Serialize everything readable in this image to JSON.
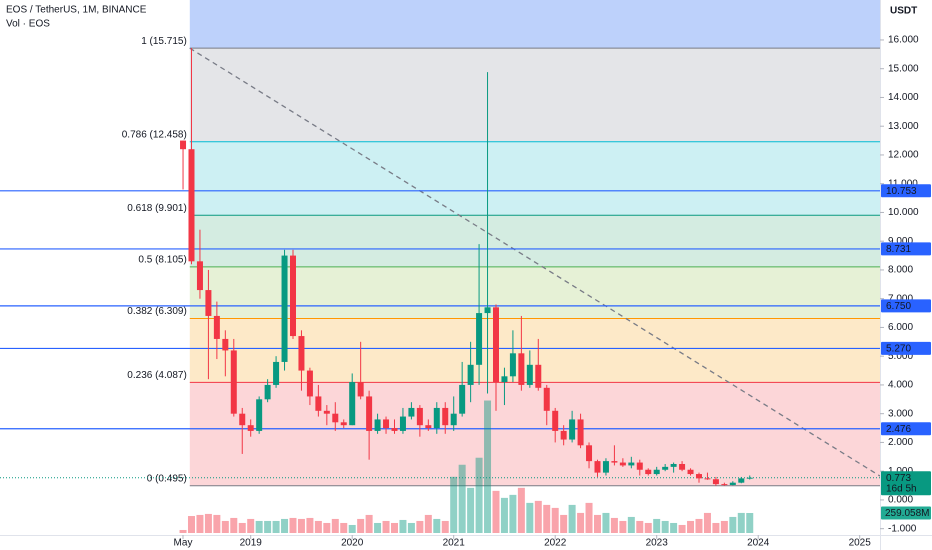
{
  "header": {
    "symbol": "EOS / TetherUS, 1M, BINANCE",
    "vol_label": "Vol · EOS"
  },
  "chart_data": {
    "type": "candlestick",
    "currency": "USDT",
    "dates": [
      "2018-05",
      "2018-06",
      "2018-07",
      "2018-08",
      "2018-09",
      "2018-10",
      "2018-11",
      "2018-12",
      "2019-01",
      "2019-02",
      "2019-03",
      "2019-04",
      "2019-05",
      "2019-06",
      "2019-07",
      "2019-08",
      "2019-09",
      "2019-10",
      "2019-11",
      "2019-12",
      "2020-01",
      "2020-02",
      "2020-03",
      "2020-04",
      "2020-05",
      "2020-06",
      "2020-07",
      "2020-08",
      "2020-09",
      "2020-10",
      "2020-11",
      "2020-12",
      "2021-01",
      "2021-02",
      "2021-03",
      "2021-04",
      "2021-05",
      "2021-06",
      "2021-07",
      "2021-08",
      "2021-09",
      "2021-10",
      "2021-11",
      "2021-12",
      "2022-01",
      "2022-02",
      "2022-03",
      "2022-04",
      "2022-05",
      "2022-06",
      "2022-07",
      "2022-08",
      "2022-09",
      "2022-10",
      "2022-11",
      "2022-12",
      "2023-01",
      "2023-02",
      "2023-03",
      "2023-04",
      "2023-05",
      "2023-06",
      "2023-07",
      "2023-08",
      "2023-09",
      "2023-10",
      "2023-11",
      "2023-12"
    ],
    "open": [
      12.5,
      12.2,
      8.3,
      7.3,
      6.4,
      5.6,
      5.2,
      3.0,
      2.6,
      2.4,
      3.5,
      4.0,
      4.8,
      8.5,
      5.7,
      4.5,
      3.6,
      3.1,
      3.0,
      2.7,
      2.6,
      4.1,
      3.6,
      2.4,
      2.8,
      2.5,
      2.4,
      2.9,
      3.2,
      2.6,
      2.5,
      3.2,
      2.6,
      3.0,
      4.0,
      4.7,
      6.5,
      6.7,
      4.1,
      4.3,
      5.1,
      4.0,
      4.7,
      3.9,
      3.1,
      2.4,
      2.1,
      2.8,
      1.9,
      1.35,
      0.95,
      1.35,
      1.3,
      1.2,
      1.3,
      1.05,
      0.9,
      1.05,
      1.15,
      1.25,
      1.05,
      0.9,
      0.75,
      0.72,
      0.55,
      0.52,
      0.6,
      0.75
    ],
    "high": [
      12.5,
      15.715,
      9.4,
      8.0,
      6.9,
      5.9,
      5.6,
      3.2,
      2.8,
      3.6,
      4.2,
      5.0,
      8.7,
      8.7,
      5.9,
      4.6,
      4.0,
      3.3,
      3.4,
      2.8,
      4.4,
      5.5,
      3.8,
      3.0,
      2.9,
      2.8,
      3.2,
      3.4,
      3.3,
      2.8,
      3.4,
      3.4,
      3.6,
      4.8,
      5.5,
      8.9,
      14.88,
      6.8,
      4.6,
      5.9,
      6.4,
      5.2,
      5.6,
      4.0,
      3.2,
      2.6,
      3.1,
      3.0,
      2.0,
      1.4,
      1.45,
      1.9,
      1.45,
      1.5,
      1.4,
      1.1,
      1.15,
      1.25,
      1.3,
      1.35,
      1.1,
      0.95,
      0.95,
      0.8,
      0.6,
      0.65,
      0.8,
      0.85
    ],
    "low": [
      10.8,
      8.2,
      7.0,
      4.2,
      4.9,
      4.3,
      2.9,
      1.6,
      2.2,
      2.3,
      3.4,
      3.9,
      4.5,
      5.6,
      3.8,
      3.3,
      2.9,
      2.6,
      2.4,
      2.5,
      2.6,
      3.5,
      1.4,
      2.3,
      2.3,
      2.3,
      2.3,
      2.8,
      2.2,
      2.4,
      2.3,
      2.3,
      2.4,
      2.9,
      3.4,
      4.0,
      3.7,
      3.1,
      3.3,
      4.1,
      3.8,
      3.9,
      3.8,
      2.6,
      2.0,
      1.9,
      2.0,
      1.8,
      1.1,
      0.8,
      0.85,
      1.2,
      1.15,
      1.1,
      0.85,
      0.85,
      0.85,
      1.0,
      0.95,
      1.0,
      0.85,
      0.6,
      0.7,
      0.495,
      0.495,
      0.51,
      0.58,
      0.71
    ],
    "close": [
      12.2,
      8.3,
      7.3,
      6.4,
      5.6,
      5.2,
      3.0,
      2.6,
      2.4,
      3.5,
      4.0,
      4.8,
      8.5,
      5.7,
      4.5,
      3.6,
      3.1,
      3.0,
      2.7,
      2.6,
      4.1,
      3.6,
      2.4,
      2.8,
      2.5,
      2.4,
      2.9,
      3.2,
      2.6,
      2.5,
      3.2,
      2.6,
      3.0,
      4.0,
      4.7,
      6.5,
      6.7,
      4.1,
      4.3,
      5.1,
      4.0,
      4.7,
      3.9,
      3.1,
      2.4,
      2.1,
      2.8,
      1.9,
      1.35,
      0.95,
      1.35,
      1.3,
      1.2,
      1.3,
      1.05,
      0.9,
      1.05,
      1.15,
      1.25,
      1.05,
      0.9,
      0.75,
      0.72,
      0.55,
      0.52,
      0.6,
      0.75,
      0.773
    ],
    "up_color": "#089981",
    "down_color": "#f23645",
    "volume": {
      "values": [
        39,
        220,
        234,
        247,
        234,
        156,
        195,
        130,
        182,
        156,
        156,
        156,
        182,
        195,
        182,
        195,
        156,
        130,
        182,
        130,
        104,
        182,
        234,
        130,
        156,
        130,
        169,
        130,
        156,
        234,
        182,
        156,
        728,
        884,
        585,
        975,
        1716,
        546,
        455,
        494,
        585,
        390,
        416,
        364,
        325,
        234,
        364,
        260,
        390,
        234,
        260,
        195,
        156,
        208,
        156,
        130,
        182,
        156,
        130,
        104,
        156,
        182,
        260,
        130,
        156,
        208,
        260,
        259.058
      ],
      "up_color": "rgba(8,153,129,0.45)",
      "down_color": "rgba(242,54,69,0.45)",
      "last_label": "259.058M",
      "label_color": "#22ab94"
    },
    "xlim": [
      2016.53,
      2025.2
    ],
    "xticks": [
      {
        "value": 2018.333,
        "label": "May"
      },
      2019,
      2020,
      2021,
      2022,
      2023,
      2024,
      2025
    ],
    "ylim": [
      -1.22,
      17.39
    ],
    "yticks": [
      {
        "value": -1,
        "label": "-1.000"
      },
      {
        "value": 0,
        "label": "0.000"
      },
      {
        "value": 1,
        "label": "1.000"
      },
      {
        "value": 2,
        "label": "2.000"
      },
      {
        "value": 3,
        "label": "3.000"
      },
      {
        "value": 4,
        "label": "4.000"
      },
      {
        "value": 5,
        "label": "5.000"
      },
      {
        "value": 6,
        "label": "6.000"
      },
      {
        "value": 7,
        "label": "7.000"
      },
      {
        "value": 8,
        "label": "8.000"
      },
      {
        "value": 9,
        "label": "9.000"
      },
      {
        "value": 10,
        "label": "10.000"
      },
      {
        "value": 11,
        "label": "11.000"
      },
      {
        "value": 12,
        "label": "12.000"
      },
      {
        "value": 13,
        "label": "13.000"
      },
      {
        "value": 14,
        "label": "14.000"
      },
      {
        "value": 15,
        "label": "15.000"
      },
      {
        "value": 16,
        "label": "16.000"
      }
    ],
    "fib": {
      "start": 2018.4,
      "top_fill": "#bdd1fb",
      "levels": [
        {
          "label": "0 (0.495)",
          "value": 0.495,
          "color": "#787b86",
          "fill": "#fcd6d8"
        },
        {
          "label": "0.236 (4.087)",
          "value": 4.087,
          "color": "#f23645",
          "fill": "#fde9c8"
        },
        {
          "label": "0.382 (6.309)",
          "value": 6.309,
          "color": "#ff9800",
          "fill": "#e6f1d6"
        },
        {
          "label": "0.5 (8.105)",
          "value": 8.105,
          "color": "#4caf50",
          "fill": "#d4ece1"
        },
        {
          "label": "0.618 (9.901)",
          "value": 9.901,
          "color": "#089981",
          "fill": "#cdf0f3"
        },
        {
          "label": "0.786 (12.458)",
          "value": 12.458,
          "color": "#00bcd4",
          "fill": "#e4e5e8"
        },
        {
          "label": "1 (15.715)",
          "value": 15.715,
          "color": "#787b86"
        }
      ]
    },
    "hlines": {
      "color": "#2962ff",
      "levels": [
        {
          "value": 10.753,
          "label": "10.753"
        },
        {
          "value": 8.731,
          "label": "8.731"
        },
        {
          "value": 6.75,
          "label": "6.750"
        },
        {
          "value": 5.27,
          "label": "5.270"
        },
        {
          "value": 2.476,
          "label": "2.476"
        }
      ]
    },
    "trend_line": {
      "x": [
        2018.4,
        2025.2
      ],
      "y": [
        15.715,
        0.83
      ],
      "color": "#787b86"
    },
    "last_price": {
      "value": 0.773,
      "label": "0.773",
      "countdown": "16d 5h",
      "color": "#089981"
    }
  }
}
